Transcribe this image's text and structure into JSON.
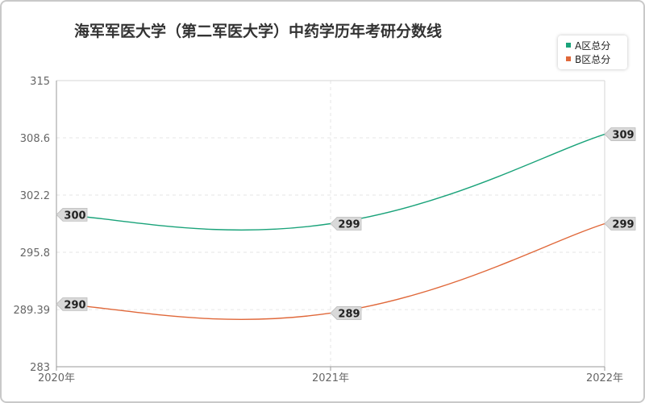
{
  "chart_data": {
    "type": "line",
    "title": "海军军医大学（第二军医大学）中药学历年考研分数线",
    "categories": [
      "2020年",
      "2021年",
      "2022年"
    ],
    "y_ticks": [
      "315",
      "308.6",
      "302.2",
      "295.8",
      "289.39",
      "283"
    ],
    "ylim": [
      283,
      315
    ],
    "grid": true,
    "legend_position": "top-right",
    "series": [
      {
        "name": "A区总分",
        "values": [
          300,
          299,
          309
        ],
        "color": "#1aa37a"
      },
      {
        "name": "B区总分",
        "values": [
          290,
          289,
          299
        ],
        "color": "#e0683a"
      }
    ]
  }
}
